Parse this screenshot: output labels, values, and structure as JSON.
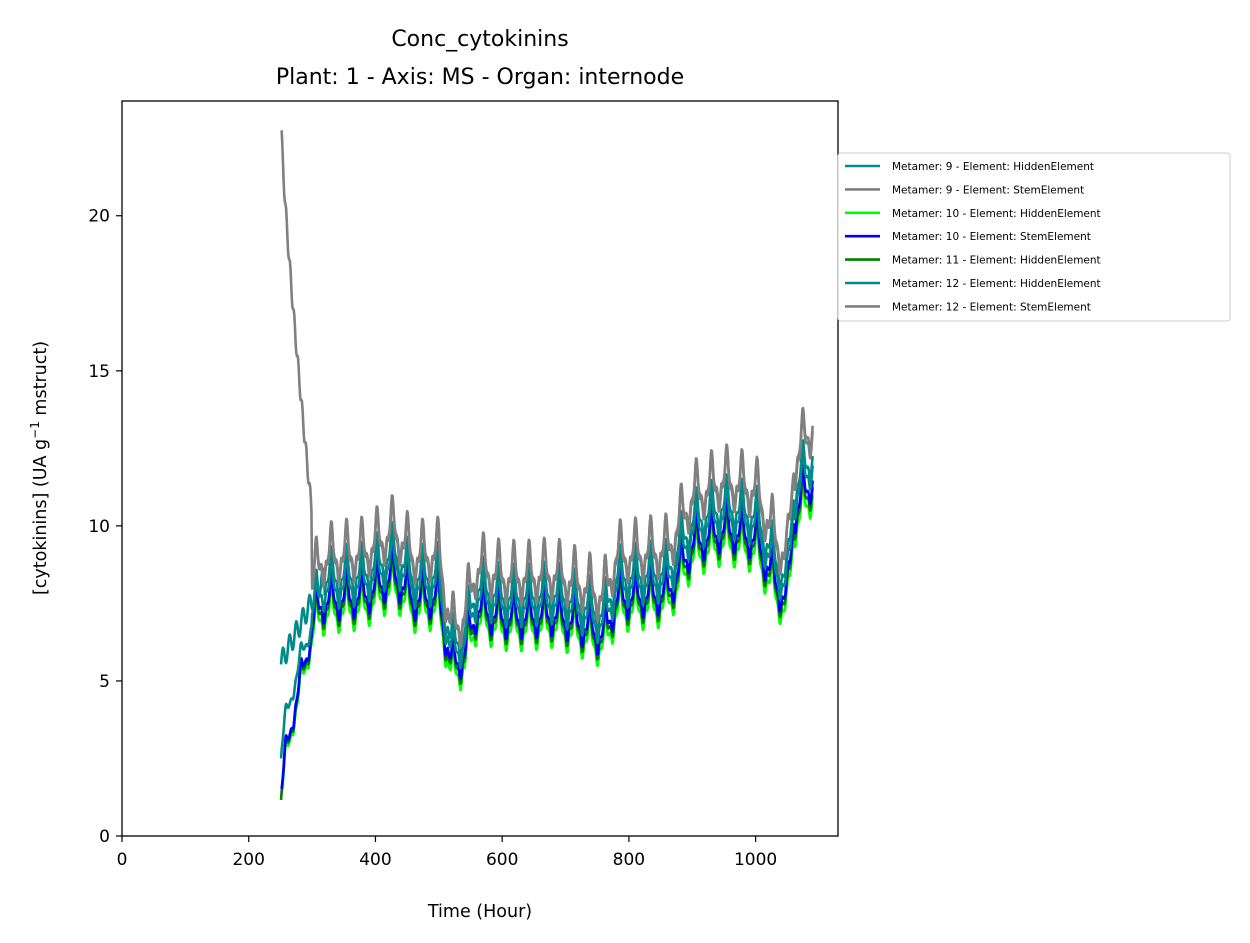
{
  "chart_data": {
    "type": "line",
    "title": "Conc_cytokinins",
    "subtitle": "Plant: 1 - Axis: MS - Organ: internode",
    "xlabel": "Time (Hour)",
    "ylabel_main": "[cytokinins] (UA g",
    "ylabel_sup": "−1",
    "ylabel_tail": " mstruct)",
    "xlim": [
      0,
      1130
    ],
    "ylim": [
      0,
      23.7
    ],
    "xticks": [
      0,
      200,
      400,
      600,
      800,
      1000
    ],
    "yticks": [
      0,
      5,
      10,
      15,
      20
    ],
    "legend_position": "right, outside plot (upper)",
    "series": [
      {
        "name": "Metamer: 9 - Element: HiddenElement",
        "color": "#008b8b",
        "start": 251,
        "end": 1090,
        "offset": 0.0,
        "scale": 1.0,
        "kind": "hidden9"
      },
      {
        "name": "Metamer: 9 - Element: StemElement",
        "color": "#808080",
        "start": 252,
        "end": 1090,
        "offset": 0.55,
        "scale": 1.06,
        "kind": "stem9"
      },
      {
        "name": "Metamer: 10 - Element: HiddenElement",
        "color": "#00ff00",
        "start": 252,
        "end": 1090,
        "offset": -0.35,
        "scale": 0.96,
        "kind": "hidden"
      },
      {
        "name": "Metamer: 10 - Element: StemElement",
        "color": "#0000ff",
        "start": 252,
        "end": 1090,
        "offset": -0.1,
        "scale": 0.98,
        "kind": "hidden"
      },
      {
        "name": "Metamer: 11 - Element: HiddenElement",
        "color": "#008000",
        "start": 251,
        "end": 1090,
        "offset": -0.2,
        "scale": 0.97,
        "kind": "hidden"
      },
      {
        "name": "Metamer: 12 - Element: HiddenElement",
        "color": "#008b8b",
        "start": 251,
        "end": 1090,
        "offset": 0.15,
        "scale": 1.0,
        "kind": "hidden12"
      },
      {
        "name": "Metamer: 12 - Element: StemElement",
        "color": "#808080",
        "start": 300,
        "end": 1090,
        "offset": 0.6,
        "scale": 1.07,
        "kind": "stem12"
      }
    ],
    "base_curve_knots": [
      [
        250,
        1.4
      ],
      [
        262,
        2.3
      ],
      [
        270,
        4.5
      ],
      [
        280,
        5.2
      ],
      [
        290,
        6.5
      ],
      [
        300,
        7.0
      ],
      [
        315,
        7.7
      ],
      [
        340,
        7.8
      ],
      [
        380,
        7.9
      ],
      [
        430,
        8.6
      ],
      [
        460,
        7.8
      ],
      [
        500,
        7.9
      ],
      [
        520,
        5.6
      ],
      [
        540,
        6.0
      ],
      [
        560,
        7.5
      ],
      [
        600,
        7.2
      ],
      [
        640,
        7.2
      ],
      [
        680,
        7.3
      ],
      [
        720,
        7.0
      ],
      [
        760,
        6.6
      ],
      [
        780,
        7.8
      ],
      [
        820,
        7.9
      ],
      [
        860,
        8.0
      ],
      [
        880,
        8.8
      ],
      [
        900,
        9.6
      ],
      [
        950,
        10.1
      ],
      [
        1000,
        9.8
      ],
      [
        1030,
        8.4
      ],
      [
        1050,
        7.7
      ],
      [
        1060,
        10.6
      ],
      [
        1080,
        11.4
      ],
      [
        1090,
        11.8
      ]
    ],
    "daily_amplitude": 1.15,
    "period_hours": 24
  }
}
